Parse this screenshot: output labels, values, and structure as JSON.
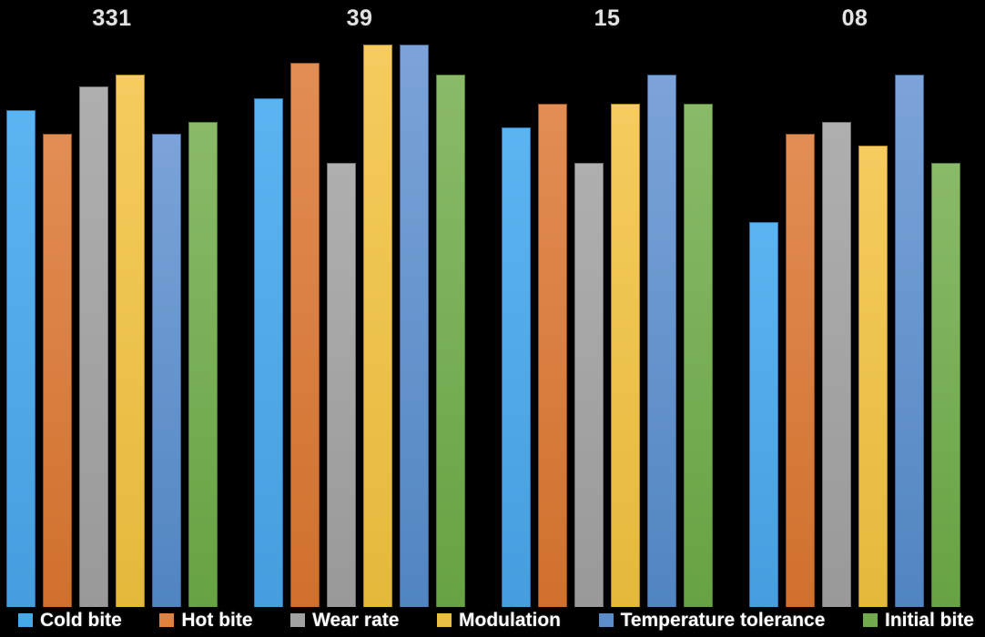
{
  "chart_data": {
    "type": "bar",
    "title": "",
    "xlabel": "",
    "ylabel": "",
    "categories": [
      "331",
      "39",
      "15",
      "08"
    ],
    "series": [
      {
        "name": "Cold bite",
        "swatch": "#45AAEA",
        "color_top": "#5BB4F2",
        "color_bottom": "#459EDF",
        "border": "#2D6FA8",
        "values": [
          8.4,
          8.6,
          8.1,
          6.5
        ]
      },
      {
        "name": "Hot bite",
        "swatch": "#E0813E",
        "color_top": "#E28D55",
        "color_bottom": "#D0702C",
        "border": "#8F4D1C",
        "values": [
          8.0,
          9.2,
          8.5,
          8.0
        ]
      },
      {
        "name": "Wear rate",
        "swatch": "#A2A2A2",
        "color_top": "#AFAFAF",
        "color_bottom": "#999999",
        "border": "#6E6E6E",
        "values": [
          8.8,
          7.5,
          7.5,
          8.2
        ]
      },
      {
        "name": "Modulation",
        "swatch": "#E9BE45",
        "color_top": "#F6CB5F",
        "color_bottom": "#E3B93C",
        "border": "#AA841F",
        "values": [
          9.0,
          9.5,
          8.5,
          7.8
        ]
      },
      {
        "name": "Temperature tolerance",
        "swatch": "#5B8DC8",
        "color_top": "#7CA3DA",
        "color_bottom": "#5185C0",
        "border": "#3A5F91",
        "values": [
          8.0,
          9.5,
          9.0,
          9.0
        ]
      },
      {
        "name": "Initial bite",
        "swatch": "#71AA4D",
        "color_top": "#8ABA69",
        "color_bottom": "#67A243",
        "border": "#4C7C2F",
        "values": [
          8.2,
          9.0,
          8.5,
          7.5
        ]
      }
    ],
    "ylim": [
      0,
      10
    ],
    "grid": false,
    "axis_visible": false,
    "legend_position": "bottom",
    "background": "#000000",
    "category_label_color": "#E3E3E3",
    "legend_text_color": "#FFFFFF"
  }
}
